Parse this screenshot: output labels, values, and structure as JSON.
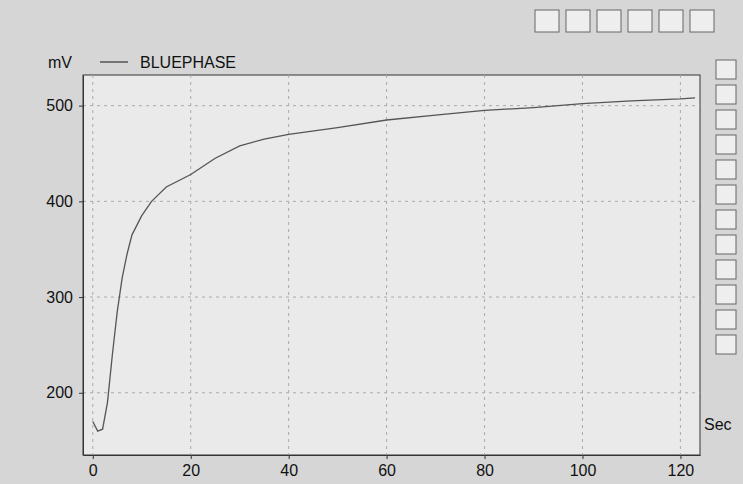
{
  "chart_data": {
    "type": "line",
    "y_label": "mV",
    "x_label": "Sec",
    "x": [
      0,
      1,
      2,
      3,
      4,
      5,
      6,
      7,
      8,
      10,
      12,
      15,
      20,
      25,
      30,
      35,
      40,
      50,
      60,
      70,
      80,
      90,
      100,
      110,
      120,
      123
    ],
    "series": [
      {
        "name": "BLUEPHASE",
        "color": "#555555",
        "values": [
          170,
          160,
          162,
          190,
          240,
          285,
          320,
          345,
          365,
          385,
          400,
          415,
          428,
          445,
          458,
          465,
          470,
          477,
          485,
          490,
          495,
          498,
          502,
          505,
          507,
          508
        ]
      }
    ],
    "xlim": [
      -2,
      124
    ],
    "ylim": [
      135,
      532
    ],
    "xticks": [
      0,
      20,
      40,
      60,
      80,
      100,
      120
    ],
    "yticks": [
      200,
      300,
      400,
      500
    ],
    "grid": true,
    "legend": "top"
  }
}
